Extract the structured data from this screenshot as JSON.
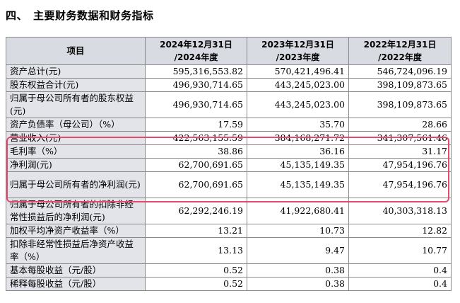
{
  "section_title": "四、　主要财务数据和财务指标",
  "table": {
    "headers": [
      "项目",
      "2024年12月31日 /2024年度",
      "2023年12月31日 /2023年度",
      "2022年12月31日 /2022年度"
    ],
    "rows": [
      {
        "label": "资产总计(元)",
        "values": [
          "595,316,553.82",
          "570,421,496.41",
          "546,724,096.19"
        ]
      },
      {
        "label": "股东权益合计(元)",
        "values": [
          "496,930,714.65",
          "443,245,023.00",
          "398,109,873.65"
        ]
      },
      {
        "label": "归属于母公司所有者的股东权益(元)",
        "values": [
          "496,930,714.65",
          "443,245,023.00",
          "398,109,873.65"
        ]
      },
      {
        "label": "资产负债率（母公司）（%）",
        "values": [
          "17.59",
          "35.70",
          "28.66"
        ]
      },
      {
        "label": "营业收入(元)",
        "values": [
          "422,563,155.59",
          "384,168,271.72",
          "341,307,561.46"
        ]
      },
      {
        "label": "毛利率（%）",
        "values": [
          "38.86",
          "36.16",
          "31.17"
        ]
      },
      {
        "label": "净利润(元)",
        "values": [
          "62,700,691.65",
          "45,135,149.35",
          "47,954,196.76"
        ]
      },
      {
        "label": "归属于母公司所有者的净利润(元)",
        "values": [
          "62,700,691.65",
          "45,135,149.35",
          "47,954,196.76"
        ]
      },
      {
        "label": "归属于母公司所有者的扣除非经常性损益后的净利润(元)",
        "values": [
          "62,292,246.19",
          "41,922,680.41",
          "40,303,318.13"
        ]
      },
      {
        "label": "加权平均净资产收益率（%）",
        "values": [
          "13.21",
          "10.73",
          "12.82"
        ]
      },
      {
        "label": "扣除非经常性损益后净资产收益率（%）",
        "values": [
          "13.13",
          "9.47",
          "10.77"
        ]
      },
      {
        "label": "基本每股收益（元/股）",
        "values": [
          "0.52",
          "0.38",
          "0.4"
        ]
      },
      {
        "label": "稀释每股收益（元/股）",
        "values": [
          "0.52",
          "0.38",
          "0.4"
        ]
      }
    ]
  },
  "highlight_color": "#e84a6e"
}
